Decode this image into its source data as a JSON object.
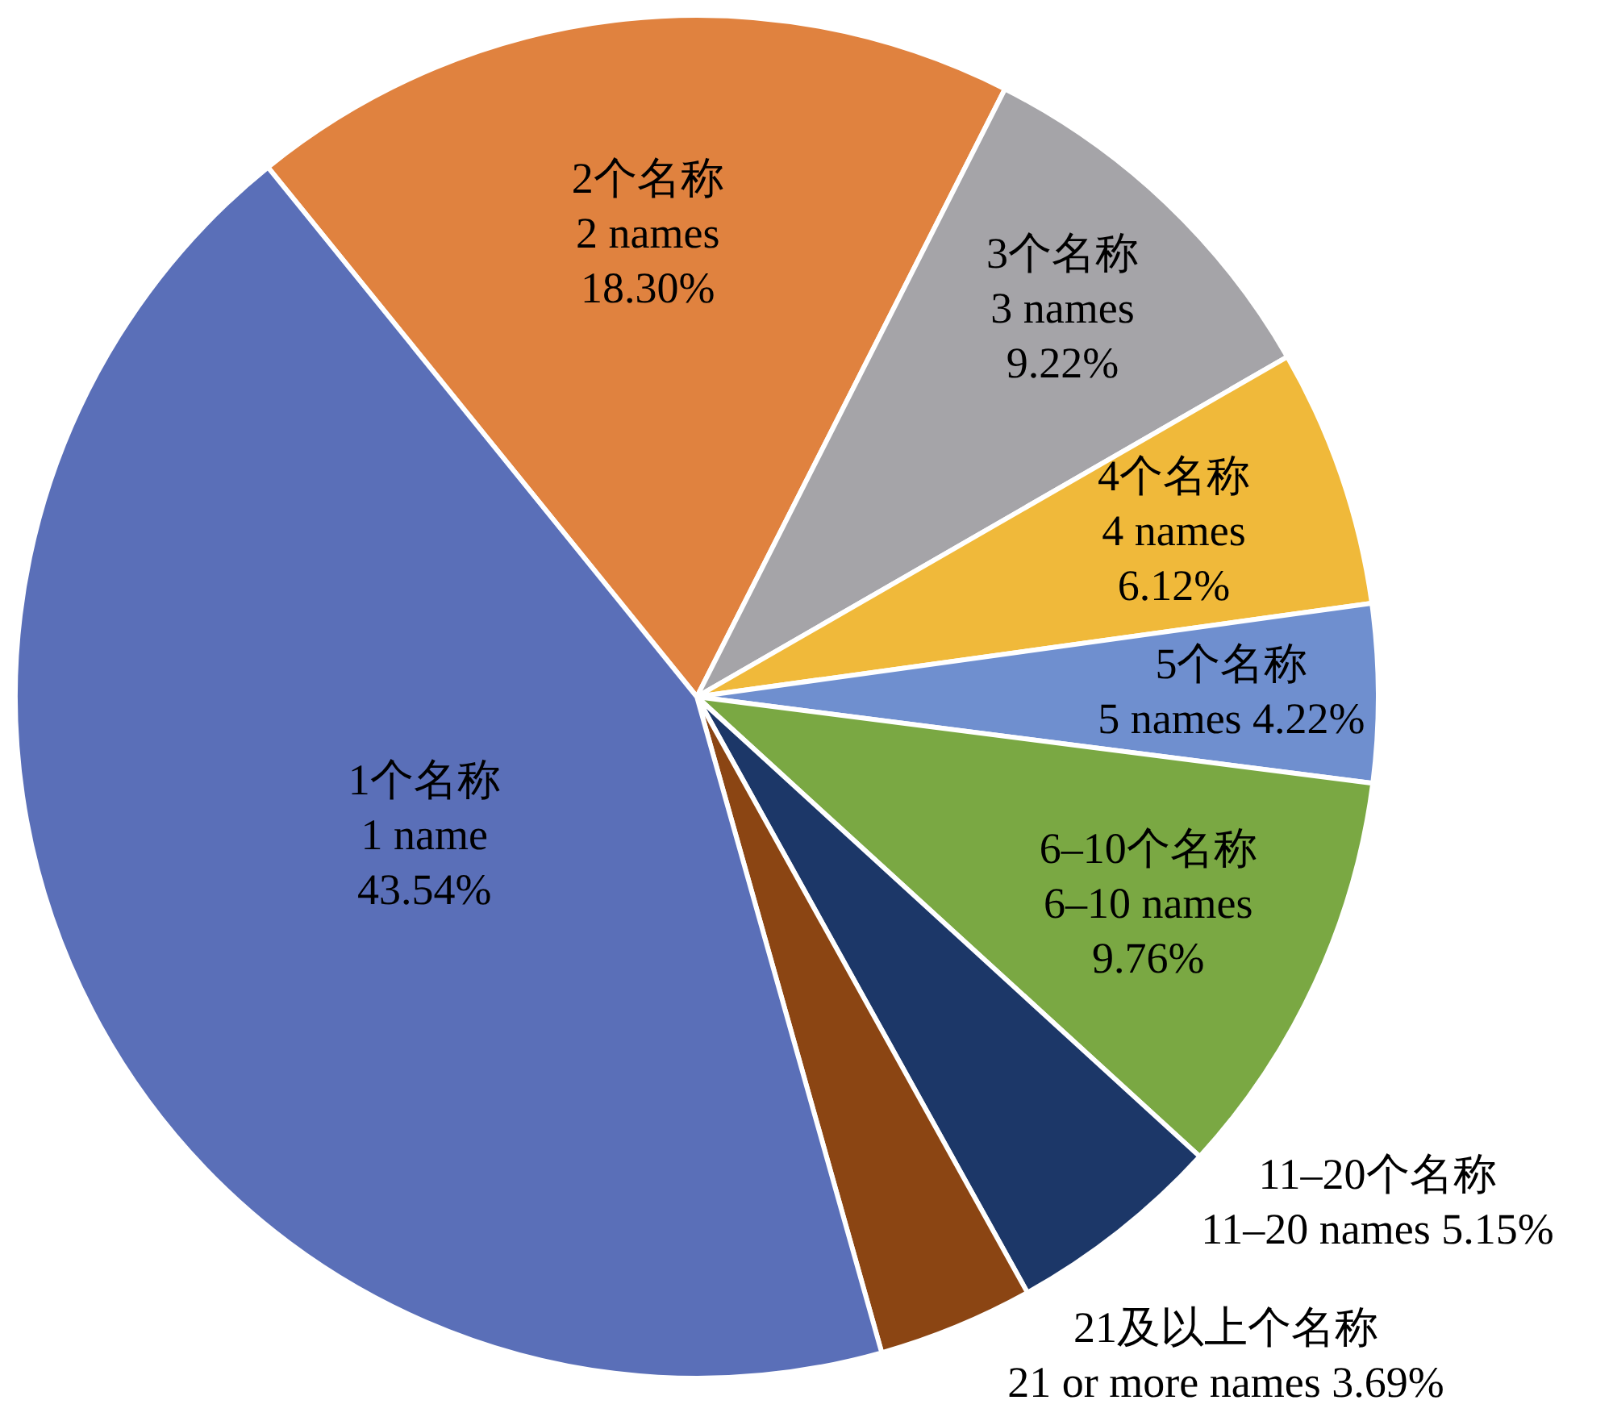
{
  "chart_data": {
    "type": "pie",
    "categories": [
      "2个名称\n2 names",
      "3个名称\n3 names",
      "4个名称\n4 names",
      "5个名称\n5 names",
      "6–10个名称\n6–10 names",
      "11–20个名称\n11–20 names",
      "21及以上个名称\n21 or more names",
      "1个名称\n1 name"
    ],
    "values": [
      18.3,
      9.22,
      6.12,
      4.22,
      9.76,
      5.15,
      3.69,
      43.54
    ],
    "value_labels": [
      "18.30%",
      "9.22%",
      "6.12%",
      "4.22%",
      "9.76%",
      "5.15%",
      "3.69%",
      "43.54%"
    ],
    "colors": [
      "#e0823f",
      "#a5a4a8",
      "#f0b93a",
      "#6f8fcf",
      "#7aa843",
      "#1c3768",
      "#8b4513",
      "#5a6fb8"
    ]
  }
}
